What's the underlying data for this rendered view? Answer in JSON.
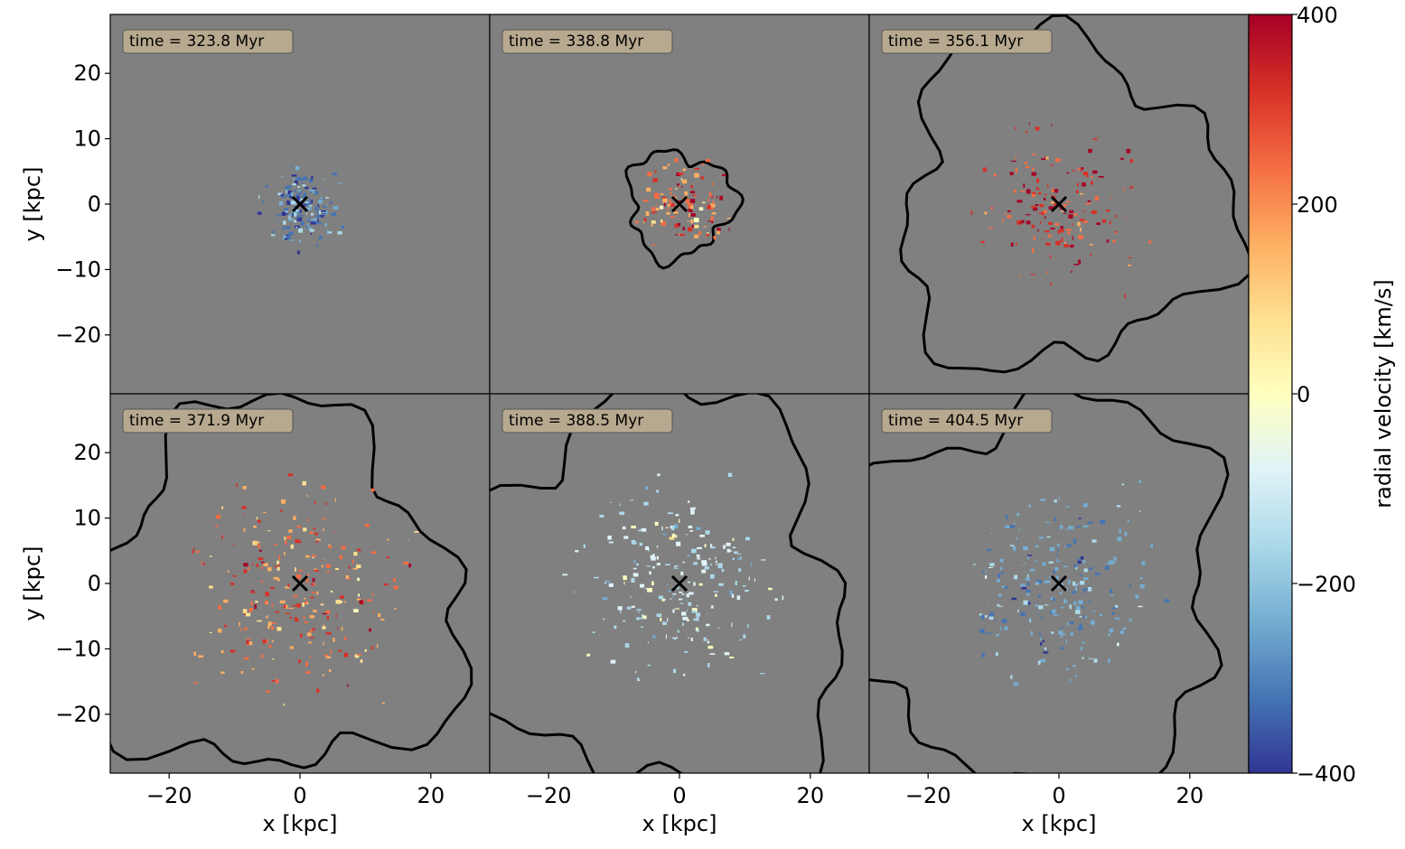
{
  "chart_data": {
    "type": "heatmap",
    "layout": "2x3 panel grid with shared axes",
    "xlabel": "x [kpc]",
    "ylabel": "y [kpc]",
    "xlim": [
      -29,
      29
    ],
    "ylim": [
      -29,
      29
    ],
    "x_ticks": [
      -20,
      0,
      20
    ],
    "y_ticks": [
      20,
      10,
      0,
      -10,
      -20
    ],
    "tick_labels": {
      "x": [
        "−20",
        "0",
        "20"
      ],
      "y": [
        "20",
        "10",
        "0",
        "−10",
        "−20"
      ]
    },
    "background_color": "#808080",
    "center_marker": {
      "x": 0,
      "y": 0,
      "symbol": "x",
      "color": "#000000"
    },
    "panels": [
      {
        "time_label": "time = 323.8 Myr",
        "time_myr": 323.8,
        "contour_radius_kpc": 0
      },
      {
        "time_label": "time = 338.8 Myr",
        "time_myr": 338.8,
        "contour_radius_kpc": 8
      },
      {
        "time_label": "time = 356.1 Myr",
        "time_myr": 356.1,
        "contour_radius_kpc": 25
      },
      {
        "time_label": "time = 371.9 Myr",
        "time_myr": 371.9,
        "contour_radius_kpc": 28
      },
      {
        "time_label": "time = 388.5 Myr",
        "time_myr": 388.5,
        "contour_radius_kpc": 30
      },
      {
        "time_label": "time = 404.5 Myr",
        "time_myr": 404.5,
        "contour_radius_kpc": 30
      }
    ],
    "colorbar": {
      "label": "radial velocity [km/s]",
      "cmap": "RdYlBu_r",
      "range": [
        -400,
        400
      ],
      "ticks": [
        400,
        200,
        0,
        -200,
        -400
      ],
      "tick_labels": [
        "400",
        "200",
        "0",
        "−200",
        "−400"
      ],
      "colors": [
        "#a50026",
        "#d73027",
        "#f46d43",
        "#fdae61",
        "#fee090",
        "#ffffbf",
        "#e0f3f8",
        "#abd9e9",
        "#74add1",
        "#4575b4",
        "#313695"
      ]
    }
  }
}
